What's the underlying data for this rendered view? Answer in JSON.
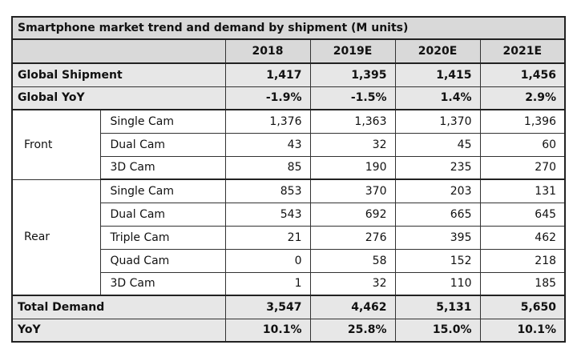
{
  "chart_data": {
    "type": "table",
    "title": "Smartphone market trend and demand by shipment (M units)",
    "columns": [
      "2018",
      "2019E",
      "2020E",
      "2021E"
    ],
    "rows": [
      {
        "label": "Global Shipment",
        "values": [
          "1,417",
          "1,395",
          "1,415",
          "1,456"
        ]
      },
      {
        "label": "Global YoY",
        "values": [
          "-1.9%",
          "-1.5%",
          "1.4%",
          "2.9%"
        ]
      }
    ],
    "groups": [
      {
        "label": "Front",
        "rows": [
          {
            "label": "Single Cam",
            "values": [
              "1,376",
              "1,363",
              "1,370",
              "1,396"
            ]
          },
          {
            "label": "Dual Cam",
            "values": [
              "43",
              "32",
              "45",
              "60"
            ]
          },
          {
            "label": "3D Cam",
            "values": [
              "85",
              "190",
              "235",
              "270"
            ]
          }
        ]
      },
      {
        "label": "Rear",
        "rows": [
          {
            "label": "Single Cam",
            "values": [
              "853",
              "370",
              "203",
              "131"
            ]
          },
          {
            "label": "Dual Cam",
            "values": [
              "543",
              "692",
              "665",
              "645"
            ]
          },
          {
            "label": "Triple Cam",
            "values": [
              "21",
              "276",
              "395",
              "462"
            ]
          },
          {
            "label": "Quad Cam",
            "values": [
              "0",
              "58",
              "152",
              "218"
            ]
          },
          {
            "label": "3D Cam",
            "values": [
              "1",
              "32",
              "110",
              "185"
            ]
          }
        ]
      }
    ],
    "totals": [
      {
        "label": "Total Demand",
        "values": [
          "3,547",
          "4,462",
          "5,131",
          "5,650"
        ]
      },
      {
        "label": "YoY",
        "values": [
          "10.1%",
          "25.8%",
          "15.0%",
          "10.1%"
        ]
      }
    ]
  }
}
